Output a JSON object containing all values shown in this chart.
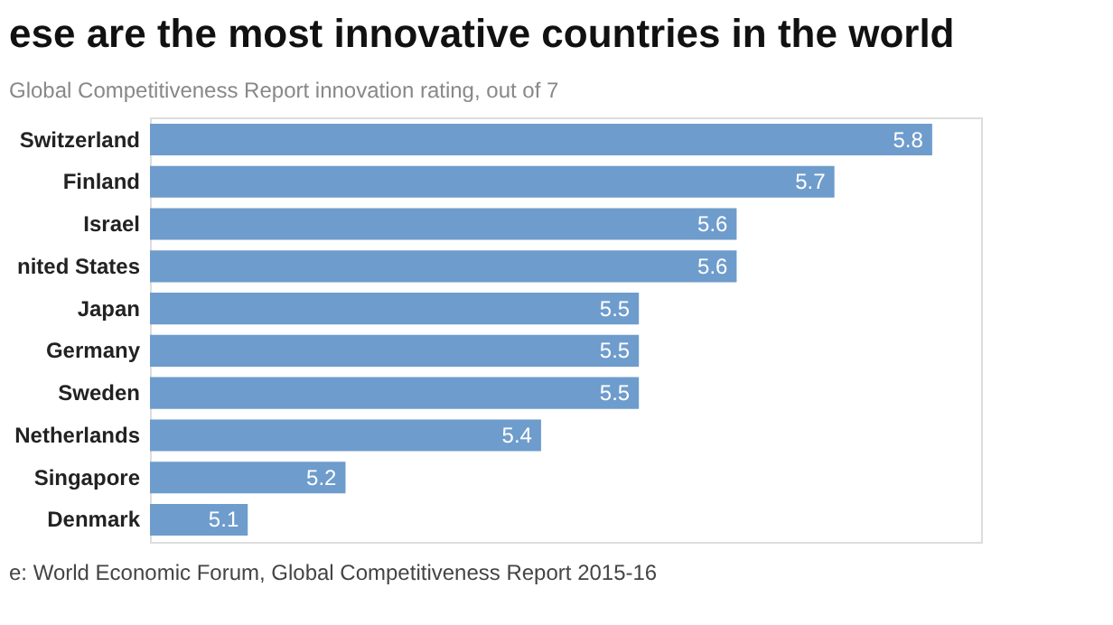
{
  "chart_data": {
    "type": "bar",
    "orientation": "horizontal",
    "title": "ese are the most innovative countries in the world",
    "subtitle": "Global Competitiveness Report innovation rating, out of 7",
    "categories": [
      "Switzerland",
      "Finland",
      "Israel",
      "nited States",
      "Japan",
      "Germany",
      "Sweden",
      "Netherlands",
      "Singapore",
      "Denmark"
    ],
    "values": [
      5.8,
      5.7,
      5.6,
      5.6,
      5.5,
      5.5,
      5.5,
      5.4,
      5.2,
      5.1
    ],
    "color": "#6e9ccc",
    "xlim": [
      5.0,
      5.85
    ],
    "data_labels": true,
    "grid": false,
    "annotations": [
      "e: World Economic Forum, Global Competitiveness Report 2015-16"
    ]
  }
}
